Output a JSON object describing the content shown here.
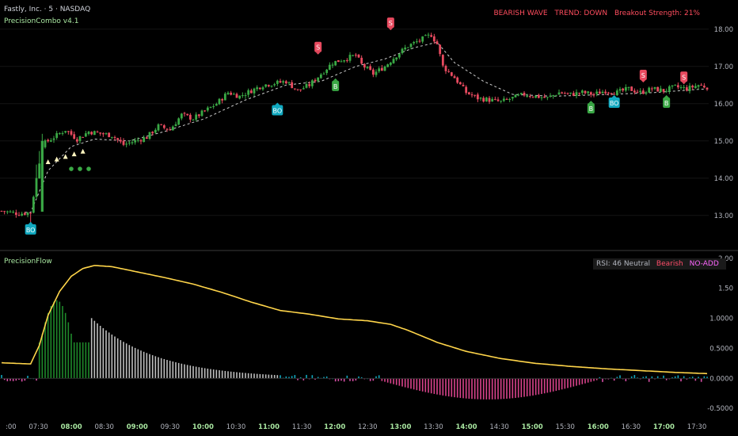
{
  "header": {
    "symbol_title": "Fastly, Inc. · 5 · NASDAQ",
    "indicator_name": "PrecisionCombo v4.1",
    "status": {
      "wave": "BEARISH WAVE",
      "trend": "TREND: DOWN",
      "breakout": "Breakout Strength: 21%"
    }
  },
  "oscillator": {
    "name": "PrecisionFlow",
    "rsi_text": "RSI: 46 Neutral",
    "bias_text": "Bearish",
    "add_text": "NO-ADD"
  },
  "colors": {
    "up": "#3aa845",
    "down": "#e84a5f",
    "signal_line": "#ffd54a",
    "teal": "#10a9c0",
    "pink": "#ff4fa5",
    "grid": "#2a2a2a"
  },
  "axes": {
    "price_ticks": [
      "18.00",
      "17.00",
      "16.00",
      "15.00",
      "14.00",
      "13.00"
    ],
    "osc_ticks": [
      "2.00",
      "1.50",
      "1.0000",
      "0.5000",
      "0.0000",
      "-0.5000"
    ],
    "time_ticks": [
      ":00",
      "07:30",
      "08:00",
      "08:30",
      "09:00",
      "09:30",
      "10:00",
      "10:30",
      "11:00",
      "11:30",
      "12:00",
      "12:30",
      "13:00",
      "13:30",
      "14:00",
      "14:30",
      "15:00",
      "15:30",
      "16:00",
      "16:30",
      "17:00",
      "17:30"
    ],
    "bold_time_ticks": [
      "08:00",
      "09:00",
      "10:00",
      "11:00",
      "12:00",
      "13:00",
      "14:00",
      "15:00",
      "16:00",
      "17:00"
    ]
  },
  "chart_data": {
    "type": "candlestick",
    "price_range": [
      12.4,
      18.4
    ],
    "osc_range": [
      -0.55,
      2.05
    ],
    "close_path": [
      [
        0,
        13.12
      ],
      [
        6,
        13.05
      ],
      [
        10,
        13.08
      ],
      [
        14,
        14.9
      ],
      [
        18,
        15.1
      ],
      [
        22,
        15.3
      ],
      [
        26,
        15.05
      ],
      [
        30,
        15.25
      ],
      [
        34,
        15.2
      ],
      [
        38,
        15.15
      ],
      [
        42,
        14.9
      ],
      [
        46,
        15.0
      ],
      [
        50,
        15.1
      ],
      [
        54,
        15.4
      ],
      [
        58,
        15.3
      ],
      [
        62,
        15.7
      ],
      [
        66,
        15.6
      ],
      [
        70,
        15.8
      ],
      [
        74,
        16.0
      ],
      [
        78,
        16.3
      ],
      [
        82,
        16.2
      ],
      [
        86,
        16.35
      ],
      [
        90,
        16.5
      ],
      [
        94,
        16.55
      ],
      [
        98,
        16.6
      ],
      [
        102,
        16.35
      ],
      [
        106,
        16.5
      ],
      [
        110,
        16.8
      ],
      [
        114,
        17.1
      ],
      [
        118,
        17.2
      ],
      [
        122,
        17.3
      ],
      [
        124,
        17.05
      ],
      [
        128,
        16.8
      ],
      [
        132,
        17.0
      ],
      [
        136,
        17.3
      ],
      [
        140,
        17.55
      ],
      [
        144,
        17.7
      ],
      [
        148,
        17.85
      ],
      [
        150,
        17.6
      ],
      [
        152,
        17.0
      ],
      [
        156,
        16.7
      ],
      [
        160,
        16.3
      ],
      [
        164,
        16.15
      ],
      [
        168,
        16.1
      ],
      [
        172,
        16.05
      ],
      [
        176,
        16.15
      ],
      [
        180,
        16.25
      ],
      [
        184,
        16.2
      ],
      [
        188,
        16.15
      ],
      [
        192,
        16.3
      ],
      [
        196,
        16.25
      ],
      [
        200,
        16.3
      ],
      [
        204,
        16.25
      ],
      [
        208,
        16.35
      ],
      [
        212,
        16.3
      ],
      [
        216,
        16.4
      ],
      [
        220,
        16.3
      ],
      [
        224,
        16.4
      ],
      [
        228,
        16.35
      ],
      [
        232,
        16.45
      ],
      [
        236,
        16.4
      ],
      [
        240,
        16.5
      ],
      [
        243,
        16.45
      ]
    ],
    "ema_path": [
      [
        0,
        13.1
      ],
      [
        10,
        13.08
      ],
      [
        16,
        14.2
      ],
      [
        24,
        14.85
      ],
      [
        32,
        15.05
      ],
      [
        44,
        15.0
      ],
      [
        56,
        15.25
      ],
      [
        70,
        15.6
      ],
      [
        84,
        16.1
      ],
      [
        98,
        16.5
      ],
      [
        110,
        16.6
      ],
      [
        122,
        17.0
      ],
      [
        132,
        17.2
      ],
      [
        142,
        17.5
      ],
      [
        150,
        17.65
      ],
      [
        156,
        17.1
      ],
      [
        166,
        16.6
      ],
      [
        176,
        16.25
      ],
      [
        190,
        16.2
      ],
      [
        210,
        16.25
      ],
      [
        225,
        16.3
      ],
      [
        243,
        16.4
      ]
    ],
    "signals": [
      {
        "label": "BO",
        "type": "below-teal",
        "i": 10,
        "price": 12.85
      },
      {
        "label": "BO",
        "type": "below-teal",
        "i": 95,
        "price": 16.05
      },
      {
        "label": "S",
        "type": "above-red",
        "i": 109,
        "price": 17.3
      },
      {
        "label": "B",
        "type": "below-green",
        "i": 115,
        "price": 16.7
      },
      {
        "label": "S",
        "type": "above-red",
        "i": 134,
        "price": 17.95
      },
      {
        "label": "B",
        "type": "below-green",
        "i": 203,
        "price": 16.1
      },
      {
        "label": "BO",
        "type": "below-teal",
        "i": 211,
        "price": 16.25
      },
      {
        "label": "S",
        "type": "above-red",
        "i": 221,
        "price": 16.55
      },
      {
        "label": "B",
        "type": "below-green",
        "i": 229,
        "price": 16.25
      },
      {
        "label": "S",
        "type": "above-red",
        "i": 235,
        "price": 16.5
      }
    ],
    "signal_curve": [
      [
        0,
        0.26
      ],
      [
        10,
        0.24
      ],
      [
        13,
        0.55
      ],
      [
        16,
        1.05
      ],
      [
        20,
        1.45
      ],
      [
        24,
        1.7
      ],
      [
        28,
        1.83
      ],
      [
        32,
        1.88
      ],
      [
        38,
        1.86
      ],
      [
        46,
        1.78
      ],
      [
        56,
        1.68
      ],
      [
        66,
        1.57
      ],
      [
        76,
        1.43
      ],
      [
        86,
        1.27
      ],
      [
        96,
        1.13
      ],
      [
        106,
        1.07
      ],
      [
        116,
        0.99
      ],
      [
        126,
        0.96
      ],
      [
        134,
        0.9
      ],
      [
        140,
        0.8
      ],
      [
        150,
        0.6
      ],
      [
        160,
        0.45
      ],
      [
        172,
        0.33
      ],
      [
        184,
        0.25
      ],
      [
        196,
        0.2
      ],
      [
        208,
        0.16
      ],
      [
        220,
        0.13
      ],
      [
        232,
        0.1
      ],
      [
        243,
        0.08
      ]
    ]
  }
}
